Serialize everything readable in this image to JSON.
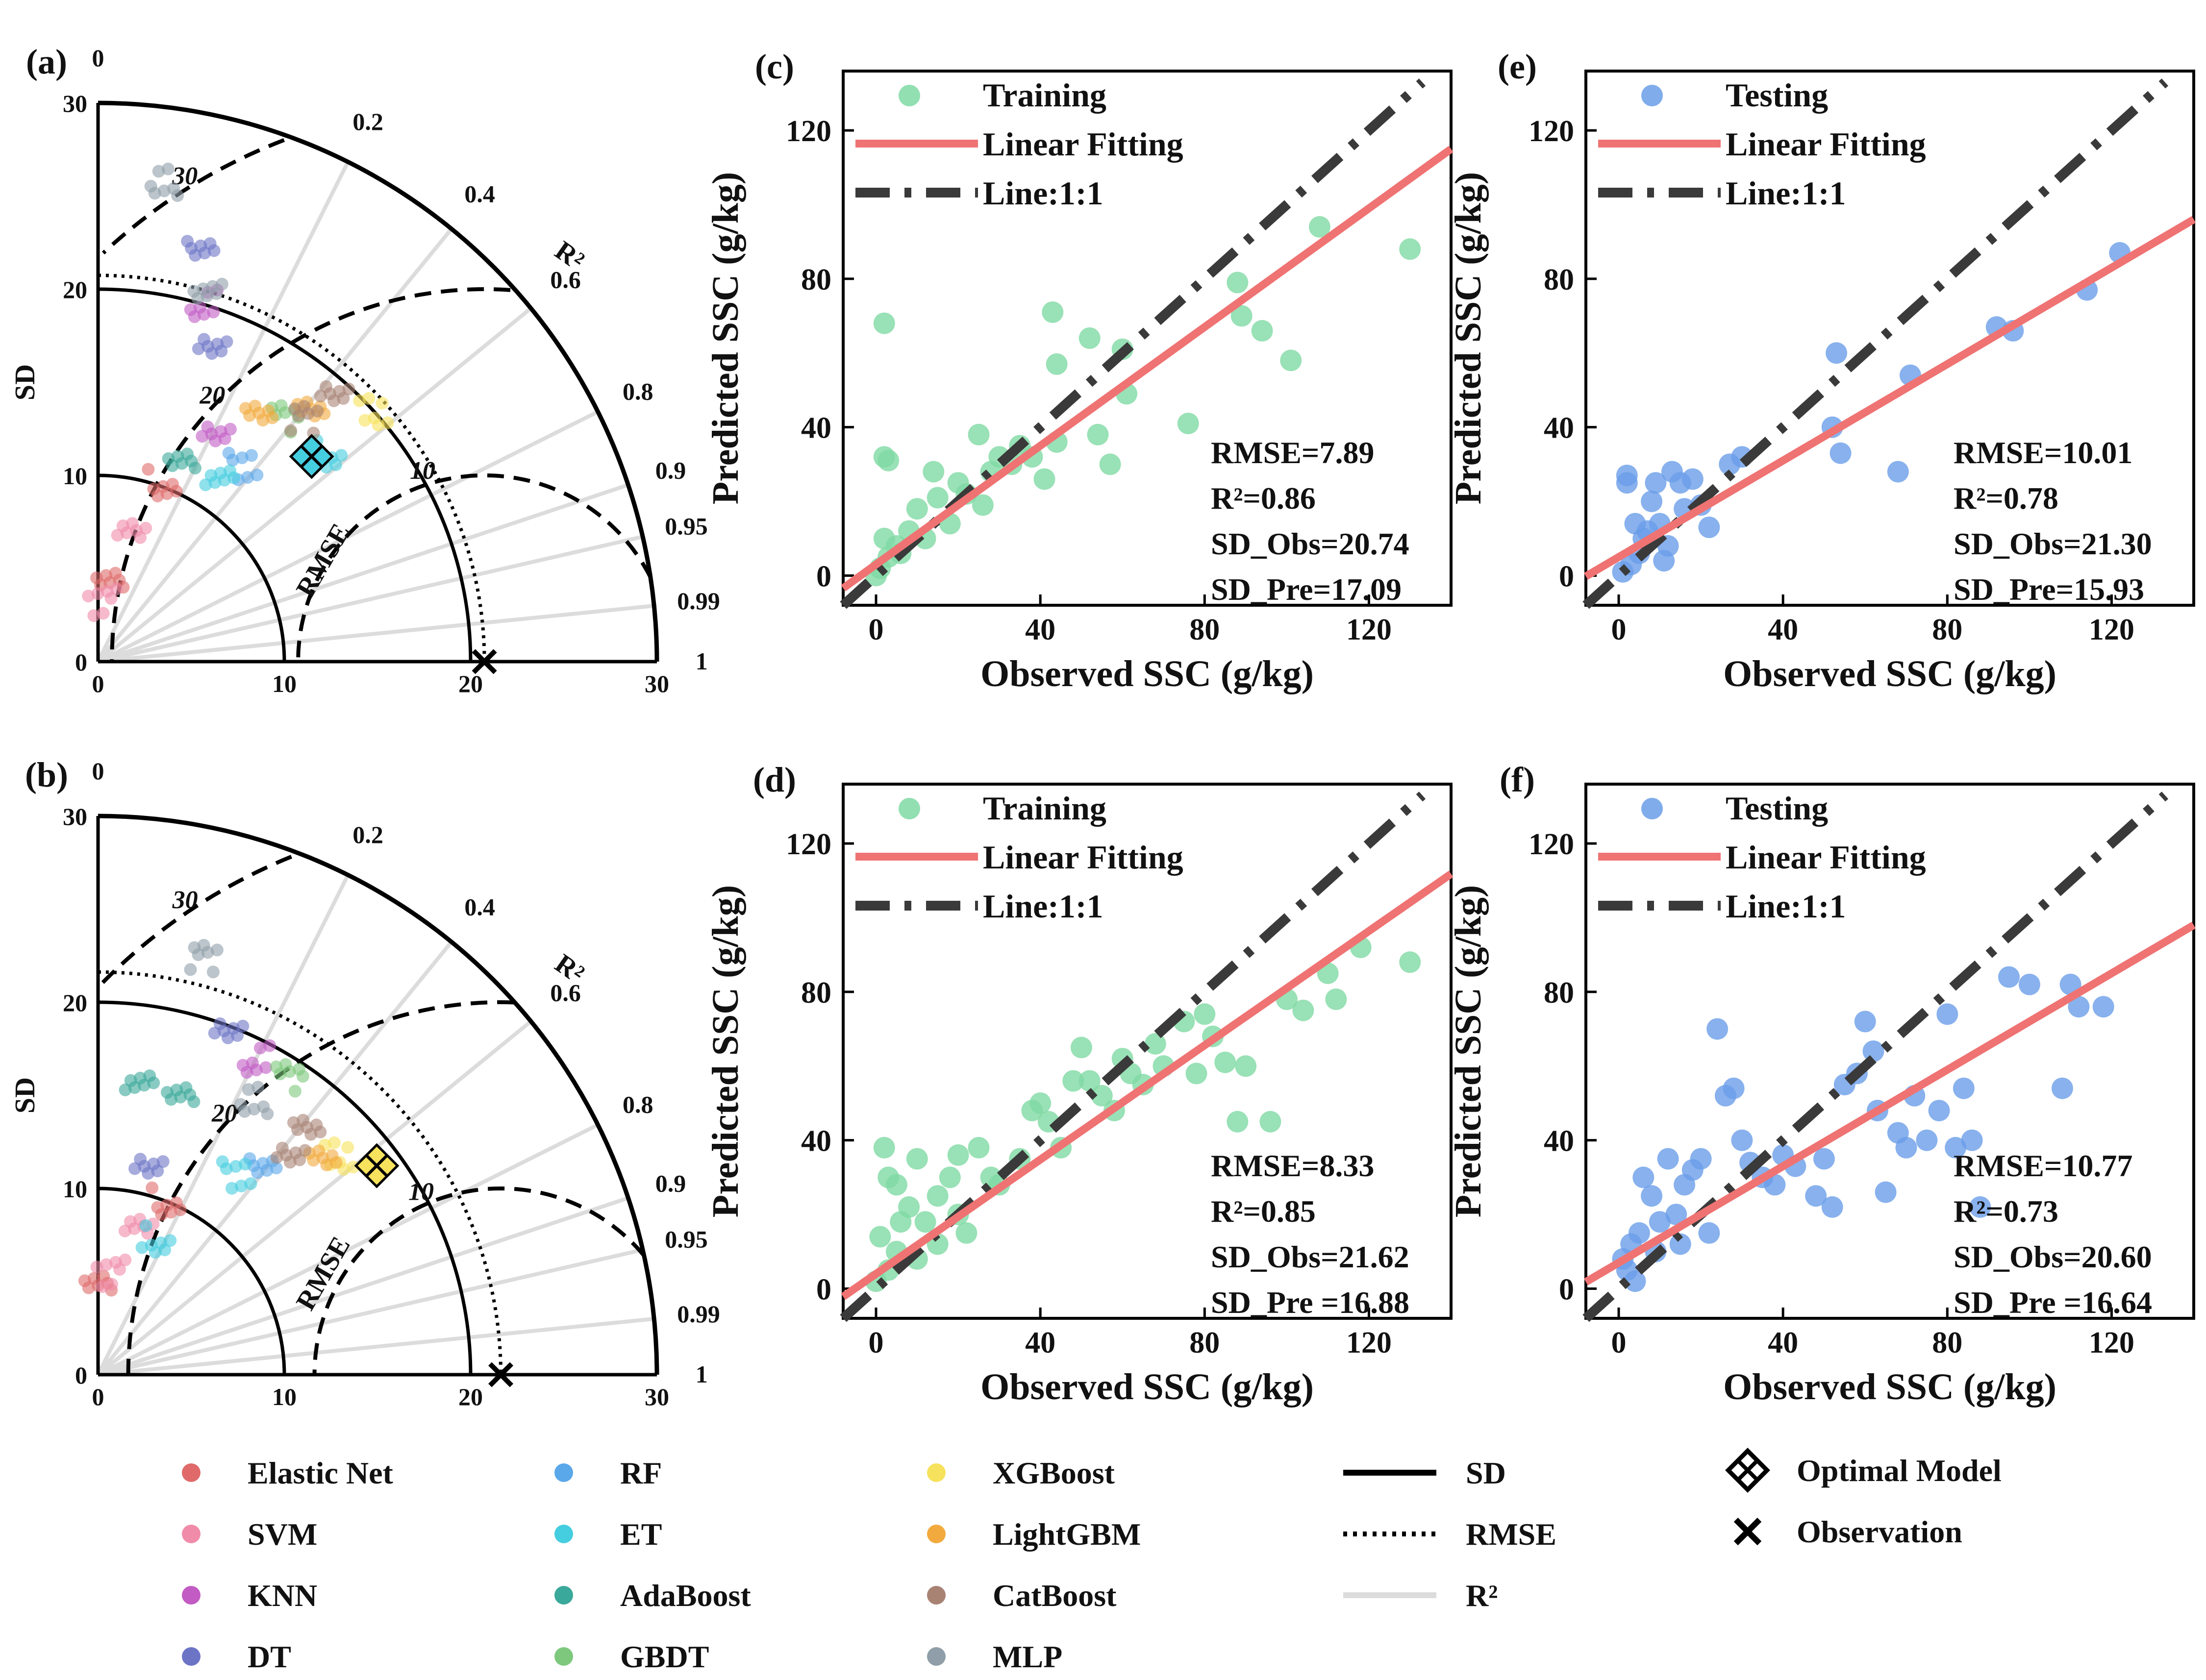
{
  "chart_data": {
    "type": "scatter",
    "taylor_diagrams": [
      {
        "panel_label": "(a)",
        "ylabel": "SD",
        "sd_ticks": [
          "0",
          "10",
          "20",
          "30"
        ],
        "r2_title": "R²",
        "r2_ticks": [
          "0",
          "0.2",
          "0.4",
          "0.6",
          "0.8",
          "0.9",
          "0.95",
          "0.99",
          "1"
        ],
        "rmse_label": "RMSE",
        "rmse_ticks": [
          "10",
          "20",
          "30"
        ],
        "observation_sd": 20.74,
        "optimal_model": {
          "name": "ET",
          "sd": 15.9,
          "r2": 0.52
        },
        "points": [
          {
            "model": "Elastic Net",
            "sd": 10.2,
            "r2": 0.12
          },
          {
            "model": "Elastic Net",
            "sd": 4.5,
            "r2": 0.02
          },
          {
            "model": "SVM",
            "sd": 7.0,
            "r2": 0.06
          },
          {
            "model": "SVM",
            "sd": 3.2,
            "r2": 0.01
          },
          {
            "model": "KNN",
            "sd": 20.1,
            "r2": 0.08
          },
          {
            "model": "KNN",
            "sd": 14.0,
            "r2": 0.2
          },
          {
            "model": "DT",
            "sd": 18.0,
            "r2": 0.12
          },
          {
            "model": "DT",
            "sd": 22.5,
            "r2": 0.06
          },
          {
            "model": "RF",
            "sd": 13.0,
            "r2": 0.35
          },
          {
            "model": "ET",
            "sd": 16.7,
            "r2": 0.55
          },
          {
            "model": "ET",
            "sd": 12.0,
            "r2": 0.3
          },
          {
            "model": "AdaBoost",
            "sd": 11.5,
            "r2": 0.15
          },
          {
            "model": "GBDT",
            "sd": 16.5,
            "r2": 0.38
          },
          {
            "model": "XGBoost",
            "sd": 20.0,
            "r2": 0.55
          },
          {
            "model": "LightGBM",
            "sd": 18.0,
            "r2": 0.4
          },
          {
            "model": "LightGBM",
            "sd": 16.0,
            "r2": 0.3
          },
          {
            "model": "CatBoost",
            "sd": 19.0,
            "r2": 0.45
          },
          {
            "model": "CatBoost",
            "sd": 17.0,
            "r2": 0.42
          },
          {
            "model": "MLP",
            "sd": 26.0,
            "r2": 0.02
          },
          {
            "model": "MLP",
            "sd": 21.0,
            "r2": 0.08
          }
        ]
      },
      {
        "panel_label": "(b)",
        "ylabel": "SD",
        "sd_ticks": [
          "0",
          "10",
          "20",
          "30"
        ],
        "r2_title": "R²",
        "r2_ticks": [
          "0",
          "0.2",
          "0.4",
          "0.6",
          "0.8",
          "0.9",
          "0.95",
          "0.99",
          "1"
        ],
        "rmse_label": "RMSE",
        "rmse_ticks": [
          "10",
          "20",
          "30"
        ],
        "observation_sd": 21.62,
        "optimal_model": {
          "name": "XGBoost",
          "sd": 18.7,
          "r2": 0.64
        },
        "points": [
          {
            "model": "Elastic Net",
            "sd": 10.0,
            "r2": 0.14
          },
          {
            "model": "Elastic Net",
            "sd": 5.0,
            "r2": 0.0
          },
          {
            "model": "SVM",
            "sd": 8.0,
            "r2": 0.07
          },
          {
            "model": "SVM",
            "sd": 5.5,
            "r2": 0.02
          },
          {
            "model": "KNN",
            "sd": 19.0,
            "r2": 0.2
          },
          {
            "model": "DT",
            "sd": 20.0,
            "r2": 0.12
          },
          {
            "model": "DT",
            "sd": 11.5,
            "r2": 0.06
          },
          {
            "model": "RF",
            "sd": 14.0,
            "r2": 0.4
          },
          {
            "model": "ET",
            "sd": 13.0,
            "r2": 0.32
          },
          {
            "model": "ET",
            "sd": 8.0,
            "r2": 0.16
          },
          {
            "model": "AdaBoost",
            "sd": 16.0,
            "r2": 0.02
          },
          {
            "model": "AdaBoost",
            "sd": 15.5,
            "r2": 0.08
          },
          {
            "model": "GBDT",
            "sd": 19.0,
            "r2": 0.3
          },
          {
            "model": "XGBoost",
            "sd": 17.5,
            "r2": 0.55
          },
          {
            "model": "LightGBM",
            "sd": 17.0,
            "r2": 0.5
          },
          {
            "model": "CatBoost",
            "sd": 17.5,
            "r2": 0.42
          },
          {
            "model": "CatBoost",
            "sd": 15.5,
            "r2": 0.45
          },
          {
            "model": "MLP",
            "sd": 23.0,
            "r2": 0.06
          },
          {
            "model": "MLP",
            "sd": 17.0,
            "r2": 0.25
          }
        ]
      }
    ],
    "scatter_plots": [
      {
        "panel_label": "(c)",
        "xlabel": "Observed SSC (g/kg)",
        "ylabel": "Predicted SSC (g/kg)",
        "xlim": [
          -8,
          140
        ],
        "ylim": [
          -8,
          136
        ],
        "xticks": [
          "0",
          "40",
          "80",
          "120"
        ],
        "yticks": [
          "0",
          "40",
          "80",
          "120"
        ],
        "point_color": "#7fd9a4",
        "series_label": "Training",
        "fit_label": "Linear Fitting",
        "ref_label": "Line:1:1",
        "fit": {
          "slope": 0.8,
          "intercept": 3.0
        },
        "stats": [
          "RMSE=7.89",
          "R²=0.86",
          "SD_Obs=20.74",
          "SD_Pre=17.09"
        ],
        "points": [
          [
            2,
            68
          ],
          [
            2,
            32
          ],
          [
            3,
            31
          ],
          [
            43,
            71
          ],
          [
            44,
            57
          ],
          [
            52,
            64
          ],
          [
            60,
            61
          ],
          [
            61,
            49
          ],
          [
            54,
            38
          ],
          [
            44,
            36
          ],
          [
            41,
            26
          ],
          [
            57,
            30
          ],
          [
            76,
            41
          ],
          [
            88,
            79
          ],
          [
            89,
            70
          ],
          [
            94,
            66
          ],
          [
            101,
            58
          ],
          [
            108,
            94
          ],
          [
            130,
            88
          ],
          [
            35,
            35
          ],
          [
            30,
            32
          ],
          [
            25,
            38
          ],
          [
            20,
            25
          ],
          [
            15,
            21
          ],
          [
            10,
            18
          ],
          [
            8,
            12
          ],
          [
            5,
            8
          ],
          [
            3,
            5
          ],
          [
            1,
            2
          ],
          [
            0,
            0
          ],
          [
            2,
            10
          ],
          [
            6,
            6
          ],
          [
            12,
            10
          ],
          [
            18,
            14
          ],
          [
            22,
            22
          ],
          [
            28,
            28
          ],
          [
            26,
            19
          ],
          [
            33,
            30
          ],
          [
            38,
            32
          ],
          [
            14,
            28
          ]
        ]
      },
      {
        "panel_label": "(d)",
        "xlabel": "Observed SSC (g/kg)",
        "ylabel": "Predicted SSC (g/kg)",
        "xlim": [
          -8,
          140
        ],
        "ylim": [
          -8,
          136
        ],
        "xticks": [
          "0",
          "40",
          "80",
          "120"
        ],
        "yticks": [
          "0",
          "40",
          "80",
          "120"
        ],
        "point_color": "#7fd9a4",
        "series_label": "Training",
        "fit_label": "Linear Fitting",
        "ref_label": "Line:1:1",
        "fit": {
          "slope": 0.77,
          "intercept": 4.0
        },
        "stats": [
          "RMSE=8.33",
          "R²=0.85",
          "SD_Obs=21.62",
          "SD_Pre =16.88"
        ],
        "points": [
          [
            2,
            38
          ],
          [
            3,
            30
          ],
          [
            5,
            28
          ],
          [
            8,
            22
          ],
          [
            10,
            35
          ],
          [
            12,
            18
          ],
          [
            15,
            25
          ],
          [
            18,
            30
          ],
          [
            20,
            36
          ],
          [
            22,
            15
          ],
          [
            25,
            38
          ],
          [
            28,
            30
          ],
          [
            30,
            28
          ],
          [
            35,
            35
          ],
          [
            38,
            48
          ],
          [
            40,
            50
          ],
          [
            42,
            45
          ],
          [
            45,
            38
          ],
          [
            48,
            56
          ],
          [
            50,
            65
          ],
          [
            52,
            56
          ],
          [
            55,
            52
          ],
          [
            58,
            48
          ],
          [
            60,
            62
          ],
          [
            62,
            58
          ],
          [
            65,
            55
          ],
          [
            68,
            66
          ],
          [
            70,
            60
          ],
          [
            75,
            72
          ],
          [
            78,
            58
          ],
          [
            80,
            74
          ],
          [
            82,
            68
          ],
          [
            85,
            61
          ],
          [
            88,
            45
          ],
          [
            90,
            60
          ],
          [
            96,
            45
          ],
          [
            100,
            78
          ],
          [
            104,
            75
          ],
          [
            110,
            85
          ],
          [
            112,
            78
          ],
          [
            118,
            92
          ],
          [
            130,
            88
          ],
          [
            3,
            5
          ],
          [
            5,
            10
          ],
          [
            0,
            2
          ],
          [
            1,
            14
          ],
          [
            6,
            18
          ],
          [
            10,
            8
          ],
          [
            15,
            12
          ],
          [
            20,
            20
          ]
        ]
      },
      {
        "panel_label": "(e)",
        "xlabel": "Observed SSC (g/kg)",
        "ylabel": "Predicted SSC (g/kg)",
        "xlim": [
          -8,
          140
        ],
        "ylim": [
          -8,
          136
        ],
        "xticks": [
          "0",
          "40",
          "80",
          "120"
        ],
        "yticks": [
          "0",
          "40",
          "80",
          "120"
        ],
        "point_color": "#6a9ee8",
        "series_label": "Testing",
        "fit_label": "Linear Fitting",
        "ref_label": "Line:1:1",
        "fit": {
          "slope": 0.65,
          "intercept": 5.0
        },
        "stats": [
          "RMSE=10.01",
          "R²=0.78",
          "SD_Obs=21.30",
          "SD_Pre=15.93"
        ],
        "points": [
          [
            2,
            25
          ],
          [
            2,
            27
          ],
          [
            4,
            14
          ],
          [
            6,
            10
          ],
          [
            8,
            20
          ],
          [
            9,
            25
          ],
          [
            10,
            14
          ],
          [
            12,
            8
          ],
          [
            13,
            28
          ],
          [
            15,
            25
          ],
          [
            16,
            18
          ],
          [
            18,
            26
          ],
          [
            20,
            19
          ],
          [
            22,
            13
          ],
          [
            27,
            30
          ],
          [
            30,
            32
          ],
          [
            52,
            40
          ],
          [
            53,
            60
          ],
          [
            54,
            33
          ],
          [
            68,
            28
          ],
          [
            71,
            54
          ],
          [
            92,
            67
          ],
          [
            96,
            66
          ],
          [
            114,
            77
          ],
          [
            122,
            87
          ],
          [
            3,
            3
          ],
          [
            5,
            6
          ],
          [
            1,
            1
          ],
          [
            7,
            12
          ],
          [
            11,
            4
          ]
        ]
      },
      {
        "panel_label": "(f)",
        "xlabel": "Observed SSC (g/kg)",
        "ylabel": "Predicted SSC (g/kg)",
        "xlim": [
          -8,
          140
        ],
        "ylim": [
          -8,
          136
        ],
        "xticks": [
          "0",
          "40",
          "80",
          "120"
        ],
        "yticks": [
          "0",
          "40",
          "80",
          "120"
        ],
        "point_color": "#6a9ee8",
        "series_label": "Testing",
        "fit_label": "Linear Fitting",
        "ref_label": "Line:1:1",
        "fit": {
          "slope": 0.65,
          "intercept": 7.0
        },
        "stats": [
          "RMSE=10.77",
          "R²=0.73",
          "SD_Obs=20.60",
          "SD_Pre =16.64"
        ],
        "points": [
          [
            2,
            5
          ],
          [
            3,
            12
          ],
          [
            5,
            15
          ],
          [
            6,
            30
          ],
          [
            8,
            25
          ],
          [
            10,
            18
          ],
          [
            12,
            35
          ],
          [
            14,
            20
          ],
          [
            16,
            28
          ],
          [
            18,
            32
          ],
          [
            20,
            35
          ],
          [
            22,
            15
          ],
          [
            24,
            70
          ],
          [
            26,
            52
          ],
          [
            28,
            54
          ],
          [
            30,
            40
          ],
          [
            32,
            34
          ],
          [
            35,
            30
          ],
          [
            38,
            28
          ],
          [
            40,
            36
          ],
          [
            43,
            33
          ],
          [
            48,
            25
          ],
          [
            50,
            35
          ],
          [
            52,
            22
          ],
          [
            55,
            55
          ],
          [
            58,
            58
          ],
          [
            60,
            72
          ],
          [
            62,
            64
          ],
          [
            63,
            48
          ],
          [
            65,
            26
          ],
          [
            68,
            42
          ],
          [
            70,
            38
          ],
          [
            72,
            52
          ],
          [
            75,
            40
          ],
          [
            78,
            48
          ],
          [
            80,
            74
          ],
          [
            82,
            38
          ],
          [
            84,
            54
          ],
          [
            86,
            40
          ],
          [
            88,
            22
          ],
          [
            95,
            84
          ],
          [
            100,
            82
          ],
          [
            108,
            54
          ],
          [
            110,
            82
          ],
          [
            112,
            76
          ],
          [
            118,
            76
          ],
          [
            4,
            2
          ],
          [
            1,
            8
          ],
          [
            9,
            10
          ],
          [
            15,
            12
          ]
        ]
      }
    ],
    "legend": {
      "models": [
        {
          "label": "Elastic Net",
          "color": "#e06a6a"
        },
        {
          "label": "SVM",
          "color": "#f08caa"
        },
        {
          "label": "KNN",
          "color": "#c25bc4"
        },
        {
          "label": "DT",
          "color": "#6c74c6"
        },
        {
          "label": "RF",
          "color": "#5aa7ea"
        },
        {
          "label": "ET",
          "color": "#45cde0"
        },
        {
          "label": "AdaBoost",
          "color": "#3aa89a"
        },
        {
          "label": "GBDT",
          "color": "#7dc87c"
        },
        {
          "label": "XGBoost",
          "color": "#f6e25c"
        },
        {
          "label": "LightGBM",
          "color": "#f2aa3e"
        },
        {
          "label": "CatBoost",
          "color": "#a88374"
        },
        {
          "label": "MLP",
          "color": "#8f9ea8"
        }
      ],
      "lines": [
        {
          "label": "SD",
          "style": "solid"
        },
        {
          "label": "RMSE",
          "style": "dotted"
        },
        {
          "label": "R²",
          "style": "gray"
        }
      ],
      "markers": [
        {
          "label": "Optimal Model",
          "marker": "crossed-square"
        },
        {
          "label": "Observation",
          "marker": "x"
        }
      ]
    }
  }
}
